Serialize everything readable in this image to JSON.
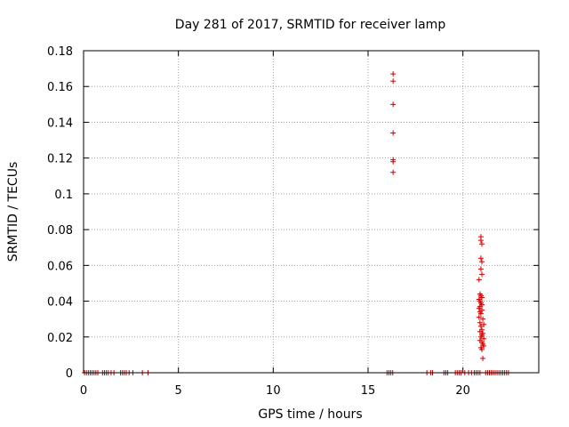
{
  "chart_data": {
    "type": "scatter",
    "title": "Day 281 of 2017, SRMTID for receiver lamp",
    "xlabel": "GPS time / hours",
    "ylabel": "SRMTID / TECUs",
    "xlim": [
      0,
      24
    ],
    "ylim": [
      0,
      0.18
    ],
    "xticks": [
      0,
      5,
      10,
      15,
      20
    ],
    "xtick_labels": [
      "0",
      "5",
      "10",
      "15",
      "20"
    ],
    "yticks": [
      0,
      0.02,
      0.04,
      0.06,
      0.08,
      0.1,
      0.12,
      0.14,
      0.16,
      0.18
    ],
    "ytick_labels": [
      "0",
      "0.02",
      "0.04",
      "0.06",
      "0.08",
      "0.1",
      "0.12",
      "0.14",
      "0.16",
      "0.18"
    ],
    "grid": true,
    "marker": "+",
    "color": "#cc0000",
    "series": [
      {
        "name": "SRMTID",
        "points": [
          [
            0.05,
            0
          ],
          [
            0.15,
            0
          ],
          [
            0.25,
            0
          ],
          [
            0.35,
            0
          ],
          [
            0.45,
            0
          ],
          [
            0.55,
            0
          ],
          [
            0.65,
            0
          ],
          [
            0.75,
            0
          ],
          [
            1.0,
            0
          ],
          [
            1.1,
            0
          ],
          [
            1.2,
            0
          ],
          [
            1.3,
            0
          ],
          [
            1.45,
            0
          ],
          [
            1.6,
            0
          ],
          [
            1.95,
            0
          ],
          [
            2.05,
            0
          ],
          [
            2.15,
            0
          ],
          [
            2.25,
            0
          ],
          [
            2.4,
            0
          ],
          [
            2.6,
            0
          ],
          [
            3.1,
            0
          ],
          [
            3.4,
            0
          ],
          [
            16.0,
            0
          ],
          [
            16.1,
            0
          ],
          [
            16.2,
            0
          ],
          [
            16.3,
            0
          ],
          [
            16.32,
            0.167
          ],
          [
            16.32,
            0.163
          ],
          [
            16.32,
            0.15
          ],
          [
            16.32,
            0.134
          ],
          [
            16.32,
            0.119
          ],
          [
            16.32,
            0.118
          ],
          [
            16.32,
            0.112
          ],
          [
            18.1,
            0
          ],
          [
            18.3,
            0
          ],
          [
            18.4,
            0
          ],
          [
            19.0,
            0
          ],
          [
            19.1,
            0
          ],
          [
            19.2,
            0
          ],
          [
            19.6,
            0
          ],
          [
            19.7,
            0
          ],
          [
            19.8,
            0
          ],
          [
            19.9,
            0
          ],
          [
            20.1,
            0
          ],
          [
            20.3,
            0
          ],
          [
            20.45,
            0
          ],
          [
            20.6,
            0
          ],
          [
            20.7,
            0
          ],
          [
            20.8,
            0
          ],
          [
            20.9,
            0
          ],
          [
            20.95,
            0.076
          ],
          [
            20.95,
            0.074
          ],
          [
            21.0,
            0.072
          ],
          [
            20.95,
            0.064
          ],
          [
            21.0,
            0.062
          ],
          [
            20.95,
            0.058
          ],
          [
            21.0,
            0.055
          ],
          [
            20.85,
            0.052
          ],
          [
            20.9,
            0.044
          ],
          [
            20.95,
            0.043
          ],
          [
            21.0,
            0.042
          ],
          [
            20.85,
            0.041
          ],
          [
            20.9,
            0.04
          ],
          [
            20.95,
            0.039
          ],
          [
            21.0,
            0.038
          ],
          [
            20.9,
            0.037
          ],
          [
            20.85,
            0.036
          ],
          [
            21.0,
            0.035
          ],
          [
            20.9,
            0.034
          ],
          [
            20.95,
            0.033
          ],
          [
            20.85,
            0.031
          ],
          [
            21.05,
            0.03
          ],
          [
            20.9,
            0.028
          ],
          [
            21.1,
            0.027
          ],
          [
            20.95,
            0.026
          ],
          [
            21.0,
            0.024
          ],
          [
            20.9,
            0.023
          ],
          [
            21.05,
            0.022
          ],
          [
            21.0,
            0.021
          ],
          [
            20.95,
            0.02
          ],
          [
            21.1,
            0.019
          ],
          [
            20.9,
            0.018
          ],
          [
            21.0,
            0.017
          ],
          [
            21.05,
            0.016
          ],
          [
            21.1,
            0.015
          ],
          [
            20.95,
            0.014
          ],
          [
            21.0,
            0.013
          ],
          [
            21.05,
            0.008
          ],
          [
            21.2,
            0
          ],
          [
            21.3,
            0
          ],
          [
            21.4,
            0
          ],
          [
            21.5,
            0
          ],
          [
            21.6,
            0
          ],
          [
            21.7,
            0
          ],
          [
            21.8,
            0
          ],
          [
            21.9,
            0
          ],
          [
            22.0,
            0
          ],
          [
            22.1,
            0
          ],
          [
            22.2,
            0
          ],
          [
            22.3,
            0
          ],
          [
            22.4,
            0
          ]
        ]
      }
    ]
  }
}
